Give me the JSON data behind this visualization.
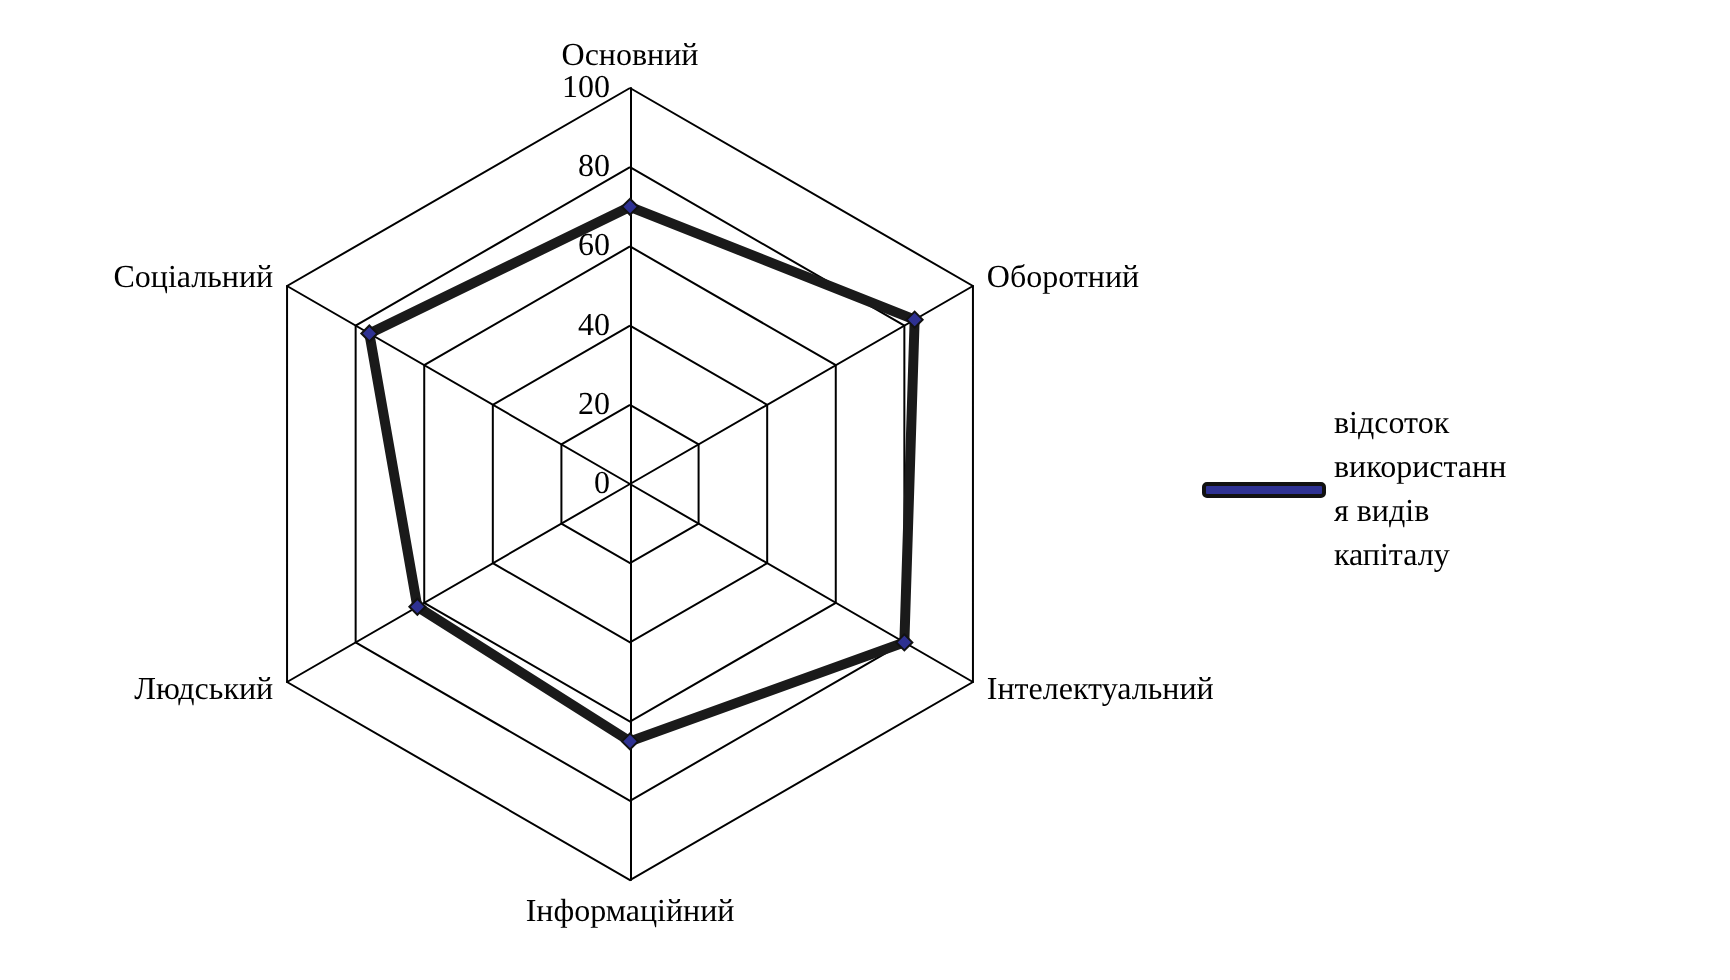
{
  "chart_data": {
    "type": "radar",
    "categories": [
      "Основний",
      "Оборотний",
      "Інтелектуальний",
      "Інформаційний",
      "Людський",
      "Соціальний"
    ],
    "series": [
      {
        "name": "відсоток використання видів капіталу",
        "color": "#1a1a1a",
        "values": [
          70,
          83,
          80,
          65,
          62,
          76
        ]
      }
    ],
    "ylim": [
      0,
      100
    ],
    "yticks": [
      0,
      20,
      40,
      60,
      80,
      100
    ],
    "marker": "diamond",
    "legend": "right",
    "grid": true
  }
}
